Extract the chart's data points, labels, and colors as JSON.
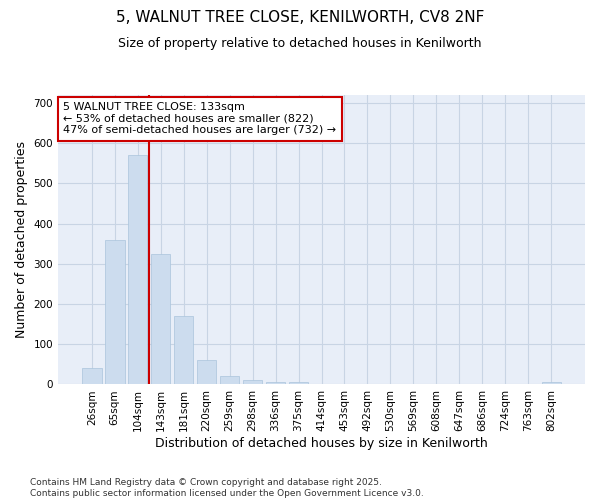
{
  "title_line1": "5, WALNUT TREE CLOSE, KENILWORTH, CV8 2NF",
  "title_line2": "Size of property relative to detached houses in Kenilworth",
  "xlabel": "Distribution of detached houses by size in Kenilworth",
  "ylabel": "Number of detached properties",
  "bar_color": "#ccdcee",
  "bar_edge_color": "#aac4dc",
  "grid_color": "#c8d4e4",
  "plot_bg_color": "#e8eef8",
  "fig_bg_color": "#ffffff",
  "categories": [
    "26sqm",
    "65sqm",
    "104sqm",
    "143sqm",
    "181sqm",
    "220sqm",
    "259sqm",
    "298sqm",
    "336sqm",
    "375sqm",
    "414sqm",
    "453sqm",
    "492sqm",
    "530sqm",
    "569sqm",
    "608sqm",
    "647sqm",
    "686sqm",
    "724sqm",
    "763sqm",
    "802sqm"
  ],
  "values": [
    40,
    360,
    570,
    325,
    170,
    60,
    22,
    10,
    5,
    5,
    0,
    0,
    0,
    0,
    0,
    0,
    0,
    0,
    0,
    0,
    5
  ],
  "vline_x_index": 3,
  "vline_color": "#cc0000",
  "annotation_text": "5 WALNUT TREE CLOSE: 133sqm\n← 53% of detached houses are smaller (822)\n47% of semi-detached houses are larger (732) →",
  "annotation_box_color": "#ffffff",
  "annotation_box_edge": "#cc0000",
  "annotation_fontsize": 8,
  "ylim": [
    0,
    720
  ],
  "yticks": [
    0,
    100,
    200,
    300,
    400,
    500,
    600,
    700
  ],
  "title_fontsize": 11,
  "subtitle_fontsize": 9,
  "xlabel_fontsize": 9,
  "ylabel_fontsize": 9,
  "tick_fontsize": 7.5,
  "footer_text": "Contains HM Land Registry data © Crown copyright and database right 2025.\nContains public sector information licensed under the Open Government Licence v3.0.",
  "footer_fontsize": 6.5
}
